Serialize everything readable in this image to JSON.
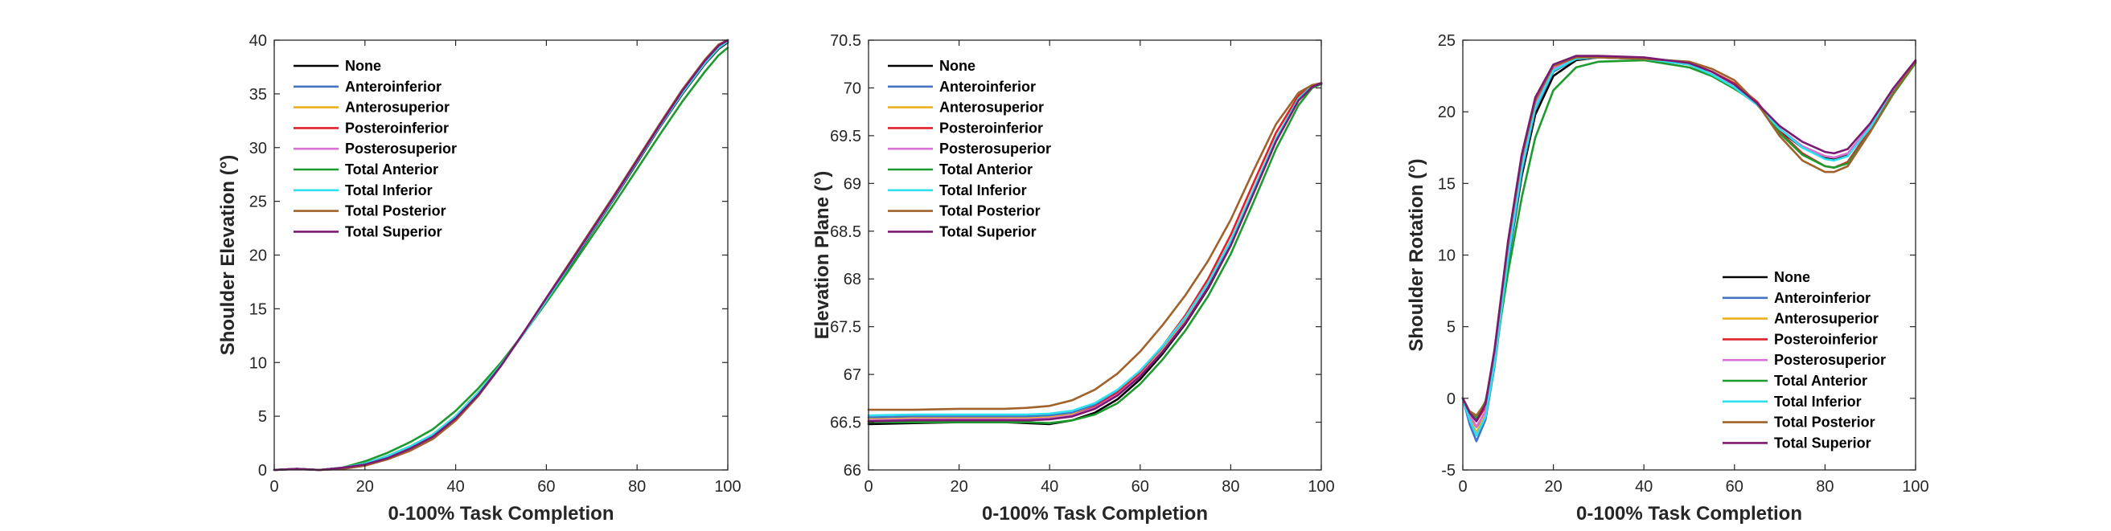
{
  "series_styles": [
    {
      "name": "None",
      "color": "#000000"
    },
    {
      "name": "Anteroinferior",
      "color": "#4472C4"
    },
    {
      "name": "Anterosuperior",
      "color": "#EDB120"
    },
    {
      "name": "Posteroinferior",
      "color": "#E0202A"
    },
    {
      "name": "Posterosuperior",
      "color": "#DA70D6"
    },
    {
      "name": "Total Anterior",
      "color": "#1E9B2E"
    },
    {
      "name": "Total Inferior",
      "color": "#2CE0F0"
    },
    {
      "name": "Total Posterior",
      "color": "#A0622A"
    },
    {
      "name": "Total Superior",
      "color": "#7B1A72"
    }
  ],
  "chart_data": [
    {
      "type": "line",
      "xlabel": "0-100% Task Completion",
      "ylabel": "Shoulder Elevation (°)",
      "xlim": [
        0,
        100
      ],
      "ylim": [
        0,
        40
      ],
      "xticks": [
        0,
        20,
        40,
        60,
        80,
        100
      ],
      "yticks": [
        0,
        5,
        10,
        15,
        20,
        25,
        30,
        35,
        40
      ],
      "grid": false,
      "legend_position": "top-left",
      "x": [
        0,
        5,
        10,
        15,
        20,
        25,
        30,
        35,
        40,
        45,
        50,
        55,
        60,
        65,
        70,
        75,
        80,
        85,
        90,
        95,
        98,
        100
      ],
      "series": [
        {
          "name": "None",
          "values": [
            0,
            0.1,
            0,
            0.2,
            0.6,
            1.3,
            2.2,
            3.3,
            5.0,
            7.2,
            9.8,
            12.7,
            15.8,
            18.9,
            22.1,
            25.3,
            28.6,
            31.9,
            35.0,
            37.8,
            39.2,
            39.8
          ]
        },
        {
          "name": "Anteroinferior",
          "values": [
            0,
            0.1,
            0,
            0.2,
            0.5,
            1.2,
            2.1,
            3.2,
            4.9,
            7.1,
            9.8,
            12.8,
            15.9,
            19.0,
            22.2,
            25.4,
            28.7,
            32.0,
            35.1,
            37.9,
            39.3,
            39.9
          ]
        },
        {
          "name": "Anterosuperior",
          "values": [
            0,
            0.1,
            0,
            0.2,
            0.6,
            1.3,
            2.2,
            3.3,
            5.0,
            7.2,
            9.8,
            12.7,
            15.8,
            19.0,
            22.2,
            25.4,
            28.7,
            32.0,
            35.1,
            37.9,
            39.3,
            39.9
          ]
        },
        {
          "name": "Posteroinferior",
          "values": [
            0,
            0.1,
            0,
            0.1,
            0.4,
            1.0,
            1.8,
            2.9,
            4.6,
            6.9,
            9.7,
            12.8,
            16.0,
            19.2,
            22.4,
            25.6,
            28.9,
            32.2,
            35.4,
            38.2,
            39.6,
            40.0
          ]
        },
        {
          "name": "Posterosuperior",
          "values": [
            0,
            0.1,
            0,
            0.2,
            0.5,
            1.2,
            2.1,
            3.2,
            4.9,
            7.1,
            9.8,
            12.8,
            15.9,
            19.0,
            22.2,
            25.4,
            28.7,
            32.0,
            35.1,
            37.9,
            39.3,
            39.9
          ]
        },
        {
          "name": "Total Anterior",
          "values": [
            0,
            0.1,
            0,
            0.2,
            0.8,
            1.6,
            2.6,
            3.8,
            5.5,
            7.6,
            10.0,
            12.7,
            15.6,
            18.6,
            21.7,
            24.8,
            28.0,
            31.2,
            34.3,
            37.1,
            38.6,
            39.3
          ]
        },
        {
          "name": "Total Inferior",
          "values": [
            0,
            0.1,
            0,
            0.2,
            0.6,
            1.3,
            2.2,
            3.3,
            5.0,
            7.2,
            9.8,
            12.7,
            15.8,
            19.0,
            22.2,
            25.4,
            28.7,
            32.0,
            35.1,
            37.9,
            39.3,
            39.9
          ]
        },
        {
          "name": "Total Posterior",
          "values": [
            0,
            0.1,
            0,
            0.1,
            0.4,
            1.0,
            1.8,
            2.9,
            4.6,
            6.9,
            9.7,
            12.8,
            16.0,
            19.2,
            22.4,
            25.6,
            28.9,
            32.2,
            35.4,
            38.2,
            39.6,
            40.0
          ]
        },
        {
          "name": "Total Superior",
          "values": [
            0,
            0.1,
            0,
            0.2,
            0.5,
            1.1,
            2.0,
            3.1,
            4.8,
            7.0,
            9.7,
            12.8,
            16.0,
            19.1,
            22.3,
            25.5,
            28.8,
            32.1,
            35.3,
            38.1,
            39.5,
            40.0
          ]
        }
      ]
    },
    {
      "type": "line",
      "xlabel": "0-100% Task Completion",
      "ylabel": "Elevation Plane (°)",
      "xlim": [
        0,
        100
      ],
      "ylim": [
        66,
        70.5
      ],
      "xticks": [
        0,
        20,
        40,
        60,
        80,
        100
      ],
      "yticks": [
        66,
        66.5,
        67,
        67.5,
        68,
        68.5,
        69,
        69.5,
        70,
        70.5
      ],
      "grid": false,
      "legend_position": "top-left",
      "x": [
        0,
        10,
        20,
        30,
        35,
        40,
        45,
        50,
        55,
        60,
        65,
        70,
        75,
        80,
        85,
        90,
        95,
        98,
        100
      ],
      "series": [
        {
          "name": "None",
          "values": [
            66.48,
            66.49,
            66.5,
            66.5,
            66.49,
            66.48,
            66.52,
            66.6,
            66.74,
            66.95,
            67.22,
            67.53,
            67.9,
            68.35,
            68.9,
            69.45,
            69.88,
            70.02,
            70.05
          ]
        },
        {
          "name": "Anteroinferior",
          "values": [
            66.55,
            66.56,
            66.56,
            66.56,
            66.56,
            66.57,
            66.6,
            66.68,
            66.82,
            67.02,
            67.28,
            67.58,
            67.94,
            68.38,
            68.92,
            69.46,
            69.88,
            70.02,
            70.05
          ]
        },
        {
          "name": "Anterosuperior",
          "values": [
            66.53,
            66.54,
            66.54,
            66.54,
            66.54,
            66.55,
            66.58,
            66.66,
            66.8,
            67.0,
            67.26,
            67.56,
            67.93,
            68.37,
            68.91,
            69.46,
            69.88,
            70.02,
            70.05
          ]
        },
        {
          "name": "Posteroinferior",
          "values": [
            66.5,
            66.51,
            66.52,
            66.52,
            66.52,
            66.53,
            66.57,
            66.66,
            66.81,
            67.02,
            67.3,
            67.62,
            68.0,
            68.46,
            69.0,
            69.53,
            69.92,
            70.03,
            70.05
          ]
        },
        {
          "name": "Posterosuperior",
          "values": [
            66.52,
            66.53,
            66.53,
            66.53,
            66.53,
            66.54,
            66.57,
            66.65,
            66.79,
            66.99,
            67.25,
            67.55,
            67.92,
            68.36,
            68.9,
            69.45,
            69.88,
            70.02,
            70.05
          ]
        },
        {
          "name": "Total Anterior",
          "values": [
            66.5,
            66.5,
            66.5,
            66.5,
            66.5,
            66.49,
            66.52,
            66.58,
            66.7,
            66.9,
            67.16,
            67.46,
            67.82,
            68.26,
            68.8,
            69.36,
            69.82,
            70.0,
            70.04
          ]
        },
        {
          "name": "Total Inferior",
          "values": [
            66.57,
            66.58,
            66.58,
            66.58,
            66.58,
            66.59,
            66.62,
            66.7,
            66.84,
            67.04,
            67.3,
            67.6,
            67.96,
            68.4,
            68.93,
            69.47,
            69.89,
            70.02,
            70.05
          ]
        },
        {
          "name": "Total Posterior",
          "values": [
            66.63,
            66.63,
            66.64,
            66.64,
            66.65,
            66.67,
            66.73,
            66.84,
            67.01,
            67.24,
            67.52,
            67.83,
            68.19,
            68.62,
            69.13,
            69.62,
            69.95,
            70.03,
            70.05
          ]
        },
        {
          "name": "Total Superior",
          "values": [
            66.51,
            66.52,
            66.52,
            66.52,
            66.52,
            66.53,
            66.56,
            66.64,
            66.78,
            66.98,
            67.24,
            67.54,
            67.91,
            68.35,
            68.89,
            69.44,
            69.87,
            70.01,
            70.05
          ]
        }
      ]
    },
    {
      "type": "line",
      "xlabel": "0-100% Task Completion",
      "ylabel": "Shoulder Rotation (°)",
      "xlim": [
        0,
        100
      ],
      "ylim": [
        -5,
        25
      ],
      "xticks": [
        0,
        20,
        40,
        60,
        80,
        100
      ],
      "yticks": [
        -5,
        0,
        5,
        10,
        15,
        20,
        25
      ],
      "grid": false,
      "legend_position": "bottom-right",
      "x": [
        0,
        1.5,
        3,
        5,
        7,
        10,
        13,
        16,
        20,
        25,
        30,
        40,
        50,
        55,
        60,
        65,
        70,
        75,
        80,
        82,
        85,
        90,
        95,
        100
      ],
      "series": [
        {
          "name": "None",
          "values": [
            0,
            -1.2,
            -2.0,
            -1.0,
            2.5,
            9.5,
            15.5,
            19.8,
            22.5,
            23.6,
            23.8,
            23.7,
            23.3,
            22.6,
            21.7,
            20.5,
            18.7,
            17.5,
            16.8,
            16.7,
            17.0,
            19.0,
            21.5,
            23.5
          ]
        },
        {
          "name": "Anteroinferior",
          "values": [
            0,
            -1.8,
            -3.0,
            -1.5,
            2.2,
            9.5,
            15.8,
            20.2,
            22.8,
            23.7,
            23.8,
            23.7,
            23.3,
            22.6,
            21.7,
            20.5,
            18.8,
            17.6,
            16.9,
            16.8,
            17.1,
            19.0,
            21.5,
            23.5
          ]
        },
        {
          "name": "Anterosuperior",
          "values": [
            0,
            -1.4,
            -2.4,
            -1.1,
            2.6,
            10.0,
            16.2,
            20.4,
            22.9,
            23.7,
            23.8,
            23.7,
            23.3,
            22.6,
            21.7,
            20.5,
            18.8,
            17.6,
            16.9,
            16.8,
            17.1,
            19.0,
            21.5,
            23.5
          ]
        },
        {
          "name": "Posteroinferior",
          "values": [
            0,
            -1.0,
            -1.6,
            -0.6,
            3.0,
            10.5,
            16.6,
            20.6,
            23.0,
            23.8,
            23.8,
            23.7,
            23.4,
            22.8,
            22.0,
            20.7,
            18.6,
            17.1,
            16.2,
            16.1,
            16.5,
            18.8,
            21.4,
            23.5
          ]
        },
        {
          "name": "Posterosuperior",
          "values": [
            0,
            -1.2,
            -2.0,
            -0.9,
            2.8,
            10.3,
            16.4,
            20.5,
            23.0,
            23.7,
            23.8,
            23.7,
            23.3,
            22.6,
            21.7,
            20.5,
            18.8,
            17.6,
            16.9,
            16.8,
            17.1,
            19.0,
            21.5,
            23.5
          ]
        },
        {
          "name": "Total Anterior",
          "values": [
            0,
            -1.0,
            -1.4,
            -0.2,
            2.8,
            8.8,
            14.0,
            18.2,
            21.5,
            23.1,
            23.5,
            23.6,
            23.1,
            22.5,
            21.6,
            20.6,
            18.5,
            17.0,
            16.2,
            16.1,
            16.4,
            18.6,
            21.2,
            23.4
          ]
        },
        {
          "name": "Total Inferior",
          "values": [
            0,
            -1.5,
            -2.6,
            -1.3,
            2.4,
            9.8,
            16.0,
            20.3,
            22.9,
            23.7,
            23.8,
            23.7,
            23.3,
            22.6,
            21.7,
            20.5,
            18.8,
            17.5,
            16.7,
            16.6,
            16.9,
            18.9,
            21.5,
            23.5
          ]
        },
        {
          "name": "Total Posterior",
          "values": [
            0,
            -0.9,
            -1.2,
            -0.3,
            3.3,
            10.8,
            16.8,
            20.8,
            23.2,
            23.8,
            23.8,
            23.7,
            23.5,
            23.0,
            22.2,
            20.6,
            18.3,
            16.6,
            15.8,
            15.8,
            16.2,
            18.6,
            21.3,
            23.5
          ]
        },
        {
          "name": "Total Superior",
          "values": [
            0,
            -1.0,
            -1.6,
            -0.4,
            3.4,
            11.0,
            17.0,
            21.0,
            23.3,
            23.9,
            23.9,
            23.8,
            23.4,
            22.8,
            21.9,
            20.6,
            19.0,
            17.9,
            17.2,
            17.1,
            17.4,
            19.2,
            21.6,
            23.6
          ]
        }
      ]
    }
  ]
}
